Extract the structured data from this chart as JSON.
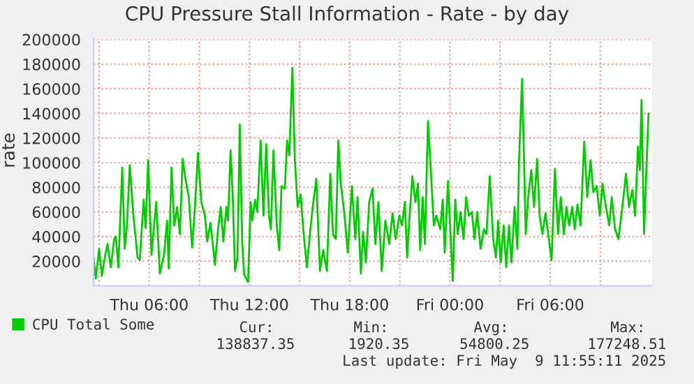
{
  "chart_data": {
    "type": "line",
    "title": "CPU Pressure Stall Information - Rate - by day",
    "ylabel": "rate",
    "xlim": [
      "2025-05-08T02:40",
      "2025-05-09T12:06"
    ],
    "xticks": [
      {
        "value": "2025-05-08T03:00",
        "label": null
      },
      {
        "value": "2025-05-08T06:00",
        "label": "Thu 06:00"
      },
      {
        "value": "2025-05-08T09:00",
        "label": null
      },
      {
        "value": "2025-05-08T12:00",
        "label": "Thu 12:00"
      },
      {
        "value": "2025-05-08T15:00",
        "label": null
      },
      {
        "value": "2025-05-08T18:00",
        "label": "Thu 18:00"
      },
      {
        "value": "2025-05-08T21:00",
        "label": null
      },
      {
        "value": "2025-05-09T00:00",
        "label": "Fri 00:00"
      },
      {
        "value": "2025-05-09T03:00",
        "label": null
      },
      {
        "value": "2025-05-09T06:00",
        "label": "Fri 06:00"
      },
      {
        "value": "2025-05-09T09:00",
        "label": null
      }
    ],
    "ylim": [
      0,
      200000
    ],
    "yticks": [
      20000,
      40000,
      60000,
      80000,
      100000,
      120000,
      140000,
      160000,
      180000,
      200000
    ],
    "grid": true,
    "legend": "bottom",
    "marker": "none",
    "line_style": "solid",
    "annotations": [
      "Cur:",
      "Min:",
      "Avg:",
      "Max:",
      "138837.35",
      "1920.35",
      "54800.25",
      "177248.51",
      "Last update: Fri May  9 11:55:11 2025"
    ],
    "series": [
      {
        "name": "CPU Total Some",
        "color": "#00cc00",
        "x": [
          "2025-05-08T02:40",
          "2025-05-08T02:48",
          "2025-05-08T03:00",
          "2025-05-08T03:10",
          "2025-05-08T03:18",
          "2025-05-08T03:30",
          "2025-05-08T03:42",
          "2025-05-08T03:54",
          "2025-05-08T04:00",
          "2025-05-08T04:09",
          "2025-05-08T04:23",
          "2025-05-08T04:32",
          "2025-05-08T04:40",
          "2025-05-08T04:50",
          "2025-05-08T05:02",
          "2025-05-08T05:18",
          "2025-05-08T05:26",
          "2025-05-08T05:40",
          "2025-05-08T05:47",
          "2025-05-08T05:56",
          "2025-05-08T06:08",
          "2025-05-08T06:25",
          "2025-05-08T06:38",
          "2025-05-08T06:53",
          "2025-05-08T07:04",
          "2025-05-08T07:10",
          "2025-05-08T07:20",
          "2025-05-08T07:30",
          "2025-05-08T07:40",
          "2025-05-08T07:50",
          "2025-05-08T08:00",
          "2025-05-08T08:10",
          "2025-05-08T08:22",
          "2025-05-08T08:34",
          "2025-05-08T08:43",
          "2025-05-08T08:55",
          "2025-05-08T09:07",
          "2025-05-08T09:20",
          "2025-05-08T09:28",
          "2025-05-08T09:40",
          "2025-05-08T09:56",
          "2025-05-08T10:07",
          "2025-05-08T10:17",
          "2025-05-08T10:26",
          "2025-05-08T10:37",
          "2025-05-08T10:43",
          "2025-05-08T10:52",
          "2025-05-08T11:00",
          "2025-05-08T11:08",
          "2025-05-08T11:17",
          "2025-05-08T11:25",
          "2025-05-08T11:34",
          "2025-05-08T11:41",
          "2025-05-08T11:55",
          "2025-05-08T12:04",
          "2025-05-08T12:10",
          "2025-05-08T12:20",
          "2025-05-08T12:28",
          "2025-05-08T12:40",
          "2025-05-08T12:50",
          "2025-05-08T13:00",
          "2025-05-08T13:10",
          "2025-05-08T13:17",
          "2025-05-08T13:26",
          "2025-05-08T13:38",
          "2025-05-08T13:47",
          "2025-05-08T13:55",
          "2025-05-08T14:07",
          "2025-05-08T14:15",
          "2025-05-08T14:23",
          "2025-05-08T14:34",
          "2025-05-08T14:43",
          "2025-05-08T14:53",
          "2025-05-08T15:04",
          "2025-05-08T15:13",
          "2025-05-08T15:26",
          "2025-05-08T15:37",
          "2025-05-08T15:47",
          "2025-05-08T16:00",
          "2025-05-08T16:13",
          "2025-05-08T16:25",
          "2025-05-08T16:38",
          "2025-05-08T16:50",
          "2025-05-08T17:00",
          "2025-05-08T17:10",
          "2025-05-08T17:19",
          "2025-05-08T17:28",
          "2025-05-08T17:40",
          "2025-05-08T17:53",
          "2025-05-08T18:08",
          "2025-05-08T18:20",
          "2025-05-08T18:28",
          "2025-05-08T18:40",
          "2025-05-08T18:48",
          "2025-05-08T18:58",
          "2025-05-08T19:10",
          "2025-05-08T19:22",
          "2025-05-08T19:32",
          "2025-05-08T19:43",
          "2025-05-08T19:55",
          "2025-05-08T20:08",
          "2025-05-08T20:22",
          "2025-05-08T20:34",
          "2025-05-08T20:45",
          "2025-05-08T20:58",
          "2025-05-08T21:08",
          "2025-05-08T21:18",
          "2025-05-08T21:26",
          "2025-05-08T21:35",
          "2025-05-08T21:45",
          "2025-05-08T21:56",
          "2025-05-08T22:05",
          "2025-05-08T22:13",
          "2025-05-08T22:22",
          "2025-05-08T22:30",
          "2025-05-08T22:41",
          "2025-05-08T22:52",
          "2025-05-08T23:02",
          "2025-05-08T23:11",
          "2025-05-08T23:25",
          "2025-05-08T23:34",
          "2025-05-08T23:41",
          "2025-05-08T23:53",
          "2025-05-09T00:02",
          "2025-05-09T00:10",
          "2025-05-09T00:19",
          "2025-05-09T00:28",
          "2025-05-09T00:38",
          "2025-05-09T00:49",
          "2025-05-09T00:58",
          "2025-05-09T01:08",
          "2025-05-09T01:19",
          "2025-05-09T01:28",
          "2025-05-09T01:38",
          "2025-05-09T01:50",
          "2025-05-09T02:02",
          "2025-05-09T02:11",
          "2025-05-09T02:23",
          "2025-05-09T02:35",
          "2025-05-09T02:45",
          "2025-05-09T02:53",
          "2025-05-09T03:02",
          "2025-05-09T03:13",
          "2025-05-09T03:22",
          "2025-05-09T03:32",
          "2025-05-09T03:41",
          "2025-05-09T03:52",
          "2025-05-09T04:02",
          "2025-05-09T04:08",
          "2025-05-09T04:19",
          "2025-05-09T04:25",
          "2025-05-09T04:32",
          "2025-05-09T04:41",
          "2025-05-09T04:52",
          "2025-05-09T05:02",
          "2025-05-09T05:13",
          "2025-05-09T05:22",
          "2025-05-09T05:32",
          "2025-05-09T05:43",
          "2025-05-09T05:55",
          "2025-05-09T06:05",
          "2025-05-09T06:17",
          "2025-05-09T06:28",
          "2025-05-09T06:38",
          "2025-05-09T06:49",
          "2025-05-09T06:58",
          "2025-05-09T07:08",
          "2025-05-09T07:19",
          "2025-05-09T07:28",
          "2025-05-09T07:38",
          "2025-05-09T07:49",
          "2025-05-09T08:02",
          "2025-05-09T08:13",
          "2025-05-09T08:25",
          "2025-05-09T08:35",
          "2025-05-09T08:47",
          "2025-05-09T08:58",
          "2025-05-09T09:08",
          "2025-05-09T09:20",
          "2025-05-09T09:32",
          "2025-05-09T09:41",
          "2025-05-09T09:53",
          "2025-05-09T10:05",
          "2025-05-09T10:19",
          "2025-05-09T10:32",
          "2025-05-09T10:43",
          "2025-05-09T10:55",
          "2025-05-09T11:05",
          "2025-05-09T11:15",
          "2025-05-09T11:22",
          "2025-05-09T11:28",
          "2025-05-09T11:37",
          "2025-05-09T11:45",
          "2025-05-09T11:53"
        ],
        "values": [
          23000,
          6000,
          30000,
          8000,
          20000,
          34000,
          15000,
          38000,
          40000,
          15000,
          96000,
          30000,
          49000,
          98000,
          60000,
          23000,
          21000,
          70000,
          47000,
          102000,
          25000,
          68000,
          10000,
          25000,
          53000,
          14000,
          96000,
          49000,
          64000,
          42000,
          103000,
          87000,
          72000,
          31000,
          60000,
          108000,
          68000,
          57000,
          36000,
          51000,
          17000,
          46000,
          64000,
          36000,
          64000,
          53000,
          110000,
          72000,
          12000,
          23000,
          131000,
          34000,
          9000,
          3000,
          68000,
          53000,
          70000,
          60000,
          118000,
          57000,
          115000,
          57000,
          46000,
          110000,
          49000,
          29000,
          81000,
          79000,
          118000,
          106000,
          177000,
          102000,
          64000,
          74000,
          46000,
          15000,
          42000,
          64000,
          87000,
          12000,
          29000,
          12000,
          91000,
          42000,
          38000,
          118000,
          83000,
          60000,
          27000,
          81000,
          38000,
          72000,
          10000,
          44000,
          19000,
          68000,
          79000,
          34000,
          68000,
          12000,
          53000,
          34000,
          59000,
          38000,
          57000,
          49000,
          68000,
          23000,
          57000,
          89000,
          68000,
          83000,
          29000,
          72000,
          34000,
          134000,
          91000,
          49000,
          57000,
          46000,
          70000,
          27000,
          85000,
          42000,
          4000,
          70000,
          42000,
          60000,
          38000,
          72000,
          57000,
          60000,
          38000,
          60000,
          30000,
          46000,
          42000,
          89000,
          38000,
          23000,
          53000,
          19000,
          49000,
          15000,
          49000,
          19000,
          64000,
          30000,
          102000,
          168000,
          113000,
          42000,
          72000,
          94000,
          64000,
          103000,
          57000,
          42000,
          59000,
          38000,
          21000,
          95000,
          42000,
          72000,
          42000,
          64000,
          49000,
          64000,
          46000,
          66000,
          49000,
          117000,
          72000,
          102000,
          76000,
          81000,
          57000,
          83000,
          64000,
          49000,
          72000,
          46000,
          38000,
          64000,
          91000,
          64000,
          78000,
          57000,
          113000,
          94000,
          151000,
          42000,
          91000,
          140000
        ]
      }
    ]
  }
}
